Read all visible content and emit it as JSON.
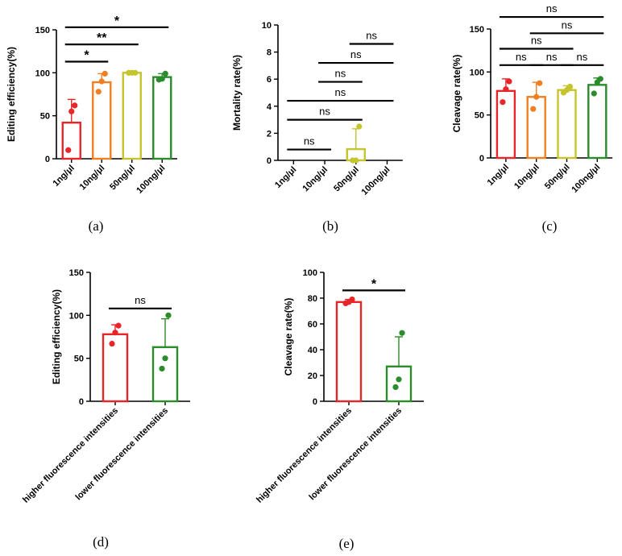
{
  "chart_data": [
    {
      "type": "bar",
      "panel_label": "(a)",
      "ylabel": "Editing efficiency(%)",
      "ylim": [
        0,
        150
      ],
      "yticks": [
        0,
        50,
        100,
        150
      ],
      "categories": [
        "1ng/μl",
        "10ng/μl",
        "50ng/μl",
        "100ng/μl"
      ],
      "colors": [
        "#e8262a",
        "#f07f22",
        "#c5c42c",
        "#2a8c2a"
      ],
      "values": [
        42,
        89,
        100,
        95
      ],
      "errors": [
        27,
        10,
        0,
        4
      ],
      "points": [
        [
          10,
          55,
          62
        ],
        [
          78,
          90,
          99
        ],
        [
          100,
          100,
          100
        ],
        [
          92,
          93,
          99
        ]
      ],
      "significance": [
        {
          "from": 0,
          "to": 1,
          "label": "*",
          "y": 113
        },
        {
          "from": 0,
          "to": 2,
          "label": "**",
          "y": 133
        },
        {
          "from": 0,
          "to": 3,
          "label": "*",
          "y": 153
        }
      ]
    },
    {
      "type": "bar",
      "panel_label": "(b)",
      "ylabel": "Mortality rate(%)",
      "ylim": [
        0,
        10
      ],
      "yticks": [
        0,
        2,
        4,
        6,
        8,
        10
      ],
      "categories": [
        "1ng/μl",
        "10ng/μl",
        "50ng/μl",
        "100ng/μl"
      ],
      "colors": [
        "#e8262a",
        "#f07f22",
        "#c5c42c",
        "#2a8c2a"
      ],
      "values": [
        0,
        0,
        0.83,
        0
      ],
      "errors": [
        0,
        0,
        1.5,
        0
      ],
      "points": [
        [],
        [],
        [
          0,
          0,
          2.5
        ],
        []
      ],
      "significance": [
        {
          "from": 0,
          "to": 1,
          "label": "ns",
          "y": 0.8
        },
        {
          "from": 0,
          "to": 2,
          "label": "ns",
          "y": 3.0
        },
        {
          "from": 0,
          "to": 3,
          "label": "ns",
          "y": 4.4
        },
        {
          "from": 1,
          "to": 2,
          "label": "ns",
          "y": 5.8
        },
        {
          "from": 1,
          "to": 3,
          "label": "ns",
          "y": 7.2
        },
        {
          "from": 2,
          "to": 3,
          "label": "ns",
          "y": 8.6
        }
      ]
    },
    {
      "type": "bar",
      "panel_label": "(c)",
      "ylabel": "Cleavage rate(%)",
      "ylim": [
        0,
        150
      ],
      "yticks": [
        0,
        50,
        100,
        150
      ],
      "categories": [
        "1ng/μl",
        "10ng/μl",
        "50ng/μl",
        "100ng/μl"
      ],
      "colors": [
        "#e8262a",
        "#f07f22",
        "#c5c42c",
        "#2a8c2a"
      ],
      "values": [
        78,
        71,
        79,
        85
      ],
      "errors": [
        14,
        17,
        5,
        8
      ],
      "points": [
        [
          65,
          80,
          89
        ],
        [
          57,
          71,
          87
        ],
        [
          76,
          79,
          83
        ],
        [
          75,
          88,
          92
        ]
      ],
      "significance": [
        {
          "from": 0,
          "to": 1,
          "label": "ns",
          "y": 108
        },
        {
          "from": 1,
          "to": 2,
          "label": "ns",
          "y": 108
        },
        {
          "from": 2,
          "to": 3,
          "label": "ns",
          "y": 108
        },
        {
          "from": 0,
          "to": 2,
          "label": "ns",
          "y": 127
        },
        {
          "from": 1,
          "to": 3,
          "label": "ns",
          "y": 145
        },
        {
          "from": 0,
          "to": 3,
          "label": "ns",
          "y": 164
        }
      ]
    },
    {
      "type": "bar",
      "panel_label": "(d)",
      "ylabel": "Editing efficiency(%)",
      "ylim": [
        0,
        150
      ],
      "yticks": [
        0,
        50,
        100,
        150
      ],
      "categories": [
        "higher fluorescence intensities",
        "lower fluorescence intensities"
      ],
      "colors": [
        "#e8262a",
        "#2a8c2a"
      ],
      "values": [
        78,
        63
      ],
      "errors": [
        11,
        33
      ],
      "points": [
        [
          67,
          80,
          88
        ],
        [
          38,
          50,
          100
        ]
      ],
      "significance": [
        {
          "from": 0,
          "to": 1,
          "label": "ns",
          "y": 108
        }
      ]
    },
    {
      "type": "bar",
      "panel_label": "(e)",
      "ylabel": "Cleavage rate(%)",
      "ylim": [
        0,
        100
      ],
      "yticks": [
        0,
        20,
        40,
        60,
        80,
        100
      ],
      "categories": [
        "higher fluorescence intensities",
        "lower fluorescence intensities"
      ],
      "colors": [
        "#e8262a",
        "#2a8c2a"
      ],
      "values": [
        77,
        27
      ],
      "errors": [
        2,
        23
      ],
      "points": [
        [
          76,
          77,
          79
        ],
        [
          11,
          17,
          53
        ]
      ],
      "significance": [
        {
          "from": 0,
          "to": 1,
          "label": "*",
          "y": 86
        }
      ]
    }
  ]
}
